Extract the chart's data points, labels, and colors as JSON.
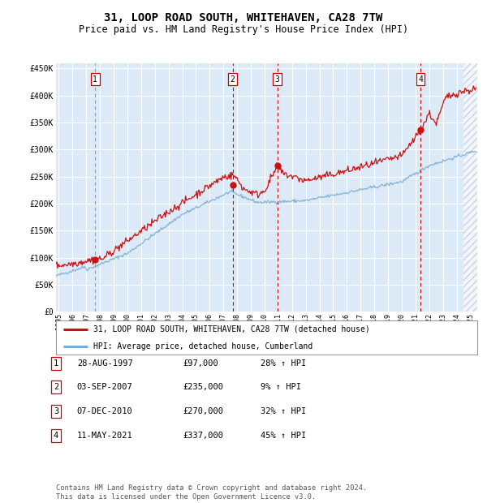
{
  "title": "31, LOOP ROAD SOUTH, WHITEHAVEN, CA28 7TW",
  "subtitle": "Price paid vs. HM Land Registry's House Price Index (HPI)",
  "title_fontsize": 10,
  "subtitle_fontsize": 8.5,
  "plot_bg_color": "#dce9f7",
  "purchases": [
    {
      "num": 1,
      "date_x": 1997.65,
      "price": 97000,
      "vline_color": "#999999"
    },
    {
      "num": 2,
      "date_x": 2007.67,
      "price": 235000,
      "vline_color": "#cc0000"
    },
    {
      "num": 3,
      "date_x": 2010.92,
      "price": 270000,
      "vline_color": "#cc0000"
    },
    {
      "num": 4,
      "date_x": 2021.36,
      "price": 337000,
      "vline_color": "#cc0000"
    }
  ],
  "hpi_line_color": "#7aadd4",
  "price_line_color": "#cc1111",
  "ylim": [
    0,
    460000
  ],
  "xlim_start": 1994.8,
  "xlim_end": 2025.5,
  "xticks": [
    1995,
    1996,
    1997,
    1998,
    1999,
    2000,
    2001,
    2002,
    2003,
    2004,
    2005,
    2006,
    2007,
    2008,
    2009,
    2010,
    2011,
    2012,
    2013,
    2014,
    2015,
    2016,
    2017,
    2018,
    2019,
    2020,
    2021,
    2022,
    2023,
    2024,
    2025
  ],
  "yticks": [
    0,
    50000,
    100000,
    150000,
    200000,
    250000,
    300000,
    350000,
    400000,
    450000
  ],
  "ytick_labels": [
    "£0",
    "£50K",
    "£100K",
    "£150K",
    "£200K",
    "£250K",
    "£300K",
    "£350K",
    "£400K",
    "£450K"
  ],
  "legend_entries": [
    "31, LOOP ROAD SOUTH, WHITEHAVEN, CA28 7TW (detached house)",
    "HPI: Average price, detached house, Cumberland"
  ],
  "table_rows": [
    {
      "num": 1,
      "date": "28-AUG-1997",
      "price": "£97,000",
      "change": "28% ↑ HPI"
    },
    {
      "num": 2,
      "date": "03-SEP-2007",
      "price": "£235,000",
      "change": "9% ↑ HPI"
    },
    {
      "num": 3,
      "date": "07-DEC-2010",
      "price": "£270,000",
      "change": "32% ↑ HPI"
    },
    {
      "num": 4,
      "date": "11-MAY-2021",
      "price": "£337,000",
      "change": "45% ↑ HPI"
    }
  ],
  "footnote": "Contains HM Land Registry data © Crown copyright and database right 2024.\nThis data is licensed under the Open Government Licence v3.0."
}
